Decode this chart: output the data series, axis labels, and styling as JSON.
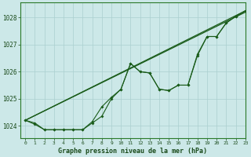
{
  "title": "Graphe pression niveau de la mer (hPa)",
  "background_color": "#cce8e8",
  "grid_color": "#aacfcf",
  "line_color": "#1a5c1a",
  "xlim": [
    -0.5,
    23
  ],
  "ylim": [
    1023.55,
    1028.55
  ],
  "yticks": [
    1024,
    1025,
    1026,
    1027,
    1028
  ],
  "xticks": [
    0,
    1,
    2,
    3,
    4,
    5,
    6,
    7,
    8,
    9,
    10,
    11,
    12,
    13,
    14,
    15,
    16,
    17,
    18,
    19,
    20,
    21,
    22,
    23
  ],
  "straight_line1": {
    "x": [
      0,
      23
    ],
    "y": [
      1024.2,
      1028.2
    ]
  },
  "straight_line2": {
    "x": [
      0,
      23
    ],
    "y": [
      1024.2,
      1028.25
    ]
  },
  "marker_line1": {
    "x": [
      0,
      1,
      2,
      3,
      4,
      5,
      6,
      7,
      8,
      9,
      10,
      11,
      12,
      13,
      14,
      15,
      16,
      17,
      18,
      19,
      20,
      21,
      22,
      23
    ],
    "y": [
      1024.2,
      1024.05,
      1023.85,
      1023.85,
      1023.85,
      1023.85,
      1023.85,
      1024.1,
      1024.35,
      1025.0,
      1025.35,
      1026.3,
      1026.0,
      1025.95,
      1025.35,
      1025.3,
      1025.5,
      1025.5,
      1026.6,
      1027.3,
      1027.3,
      1027.8,
      1028.05,
      1028.25
    ]
  },
  "marker_line2": {
    "x": [
      0,
      1,
      2,
      3,
      4,
      5,
      6,
      7,
      8,
      9,
      10,
      11,
      12,
      13,
      14,
      15,
      16,
      17,
      18,
      19,
      20,
      21,
      22,
      23
    ],
    "y": [
      1024.2,
      1024.1,
      1023.85,
      1023.85,
      1023.85,
      1023.85,
      1023.85,
      1024.15,
      1024.7,
      1025.05,
      1025.35,
      1026.3,
      1026.0,
      1025.95,
      1025.35,
      1025.3,
      1025.5,
      1025.5,
      1026.65,
      1027.3,
      1027.3,
      1027.8,
      1028.05,
      1028.25
    ]
  }
}
